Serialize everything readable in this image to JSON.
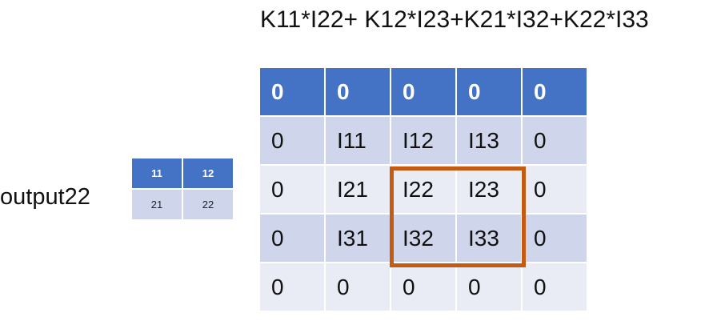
{
  "formula": "K11*I22+ K12*I23+K21*I32+K22*I33",
  "output_label": "output22",
  "kernel": {
    "header": [
      "11",
      "12"
    ],
    "body": [
      "21",
      "22"
    ]
  },
  "grid": {
    "rows": [
      [
        "0",
        "0",
        "0",
        "0",
        "0"
      ],
      [
        "0",
        "I11",
        "I12",
        "I13",
        "0"
      ],
      [
        "0",
        "I21",
        "I22",
        "I23",
        "0"
      ],
      [
        "0",
        "I31",
        "I32",
        "I33",
        "0"
      ],
      [
        "0",
        "0",
        "0",
        "0",
        "0"
      ]
    ]
  },
  "colors": {
    "header": "#4472c4",
    "row_dark": "#cfd5ea",
    "row_light": "#e9ebf5",
    "highlight": "#c55a11"
  }
}
